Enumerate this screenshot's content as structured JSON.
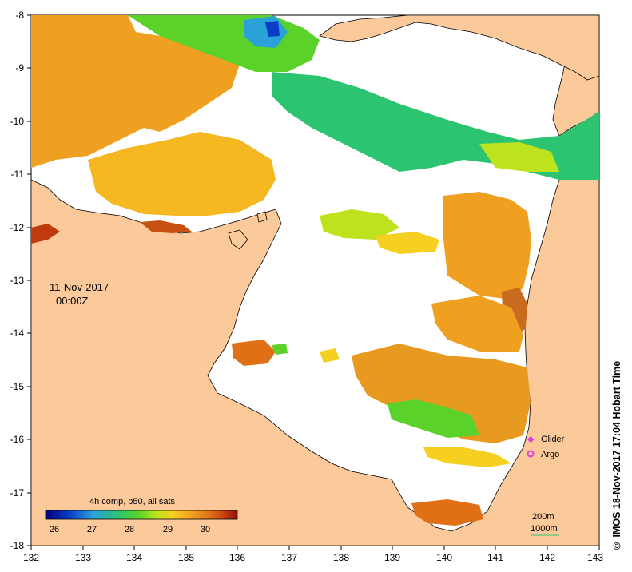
{
  "map": {
    "date": "11-Nov-2017",
    "time": "00:00Z",
    "longitude_ticks": [
      "132",
      "133",
      "134",
      "135",
      "136",
      "137",
      "138",
      "139",
      "140",
      "141",
      "142",
      "143"
    ],
    "latitude_ticks": [
      "-8",
      "-9",
      "-10",
      "-11",
      "-12",
      "-13",
      "-14",
      "-15",
      "-16",
      "-17",
      "-18"
    ],
    "land_color": "#fbc99a",
    "no_data_color": "#ffffff"
  },
  "colorbar": {
    "title": "4h comp, p50, all sats",
    "ticks": [
      "26",
      "27",
      "28",
      "29",
      "30"
    ],
    "range": [
      25.8,
      31.0
    ],
    "colors": [
      "#00007a",
      "#0a3cc8",
      "#2aa2d8",
      "#2cc470",
      "#5ad22a",
      "#bde21e",
      "#f5d020",
      "#f0a020",
      "#e07016",
      "#c03a10",
      "#8a1010"
    ]
  },
  "legend": {
    "glider_label": "Glider",
    "argo_label": "Argo",
    "glider_color": "#e040e0",
    "argo_color": "#e040e0",
    "depth_200_label": "200m",
    "depth_1000_label": "1000m"
  },
  "credit": "© IMOS 18-Nov-2017 17:04 Hobart Time"
}
